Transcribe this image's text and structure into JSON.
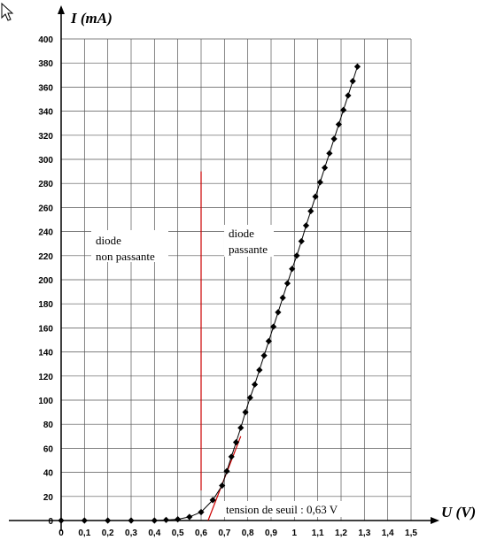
{
  "chart_data": {
    "type": "scatter",
    "xlabel": "U (V)",
    "ylabel": "I (mA)",
    "xlim": [
      0,
      1.5
    ],
    "ylim": [
      0,
      400
    ],
    "grid": true,
    "x_ticks": [
      "0",
      "0,1",
      "0,2",
      "0,3",
      "0,4",
      "0,5",
      "0,6",
      "0,7",
      "0,8",
      "0,9",
      "1",
      "1,1",
      "1,2",
      "1,3",
      "1,4",
      "1,5"
    ],
    "y_ticks": [
      "0",
      "20",
      "40",
      "60",
      "80",
      "100",
      "120",
      "140",
      "160",
      "180",
      "200",
      "220",
      "240",
      "260",
      "280",
      "300",
      "320",
      "340",
      "360",
      "380",
      "400"
    ],
    "series": [
      {
        "marker": "diamond",
        "color": "#000000",
        "x": [
          0.0,
          0.1,
          0.2,
          0.3,
          0.4,
          0.45,
          0.5,
          0.55,
          0.6,
          0.65,
          0.69,
          0.71,
          0.73,
          0.75,
          0.77,
          0.79,
          0.81,
          0.83,
          0.85,
          0.87,
          0.89,
          0.91,
          0.93,
          0.95,
          0.97,
          0.99,
          1.01,
          1.03,
          1.05,
          1.07,
          1.09,
          1.11,
          1.13,
          1.15,
          1.17,
          1.19,
          1.21,
          1.23,
          1.25,
          1.27
        ],
        "y": [
          0,
          0,
          0,
          0,
          0,
          0.5,
          1,
          3,
          7,
          17,
          29,
          41,
          53,
          65,
          77,
          90,
          102,
          113,
          125,
          137,
          149,
          161,
          173,
          185,
          197,
          209,
          220,
          232,
          245,
          257,
          269,
          281,
          293,
          305,
          317,
          329,
          341,
          353,
          365,
          377
        ]
      }
    ],
    "tangent": {
      "color": "#cc0000",
      "x": [
        0.63,
        0.77
      ],
      "y": [
        0,
        70
      ]
    },
    "threshold_line": {
      "color": "#cc0000",
      "x": 0.6,
      "y_range": [
        25,
        290
      ]
    },
    "annotations": {
      "left_zone": [
        "diode",
        "non passante"
      ],
      "right_zone": [
        "diode",
        "passante"
      ],
      "threshold": "tension de seuil : 0,63 V"
    }
  }
}
